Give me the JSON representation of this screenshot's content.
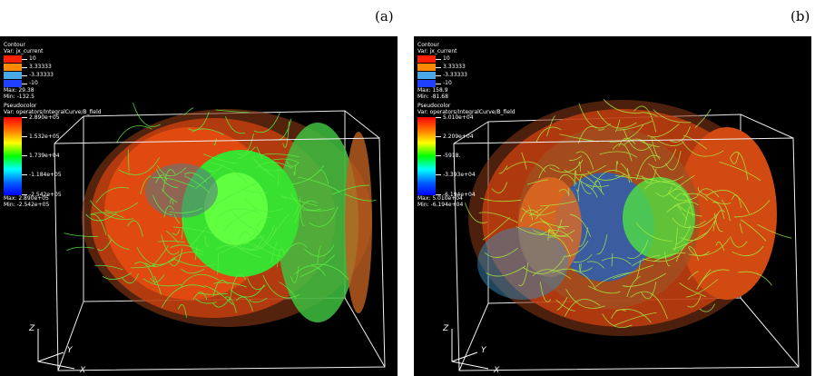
{
  "labels": {
    "a": "(a)",
    "b": "(b)"
  },
  "panels": [
    {
      "contour_title": "Contour",
      "contour_var": "Var: jx_current",
      "contour_levels": [
        "10",
        "3.33333",
        "-3.33333",
        "-10"
      ],
      "contour_colors": [
        "#ff2000",
        "#ff8a00",
        "#4aa8e8",
        "#2040ff"
      ],
      "contour_max": "Max:  29.38",
      "contour_min": "Min: -132.5",
      "pseudo_title": "Pseudocolor",
      "pseudo_var": "Var: operators/IntegralCurve/B_field",
      "pseudo_ticks": [
        "2.890e+05",
        "1.532e+05",
        "1.739e+04",
        "-1.184e+05",
        "-2.542e+05"
      ],
      "pseudo_max": "Max: 2.890e+05",
      "pseudo_min": "Min: -2.542e+05",
      "axis_z": "Z",
      "axis_y": "Y",
      "axis_x": "X"
    },
    {
      "contour_title": "Contour",
      "contour_var": "Var: jx_current",
      "contour_levels": [
        "10",
        "3.33333",
        "-3.33333",
        "-10"
      ],
      "contour_colors": [
        "#ff2000",
        "#ff8a00",
        "#4aa8e8",
        "#2040ff"
      ],
      "contour_max": "Max:  158.9",
      "contour_min": "Min: -81.68",
      "pseudo_title": "Pseudocolor",
      "pseudo_var": "Var: operators/IntegralCurve/B_field",
      "pseudo_ticks": [
        "5.010e+04",
        "2.209e+04",
        "-5918.",
        "-3.393e+04",
        "-6.194e+04"
      ],
      "pseudo_max": "Max: 5.010e+04",
      "pseudo_min": "Min: -6.194e+04",
      "axis_z": "Z",
      "axis_y": "Y",
      "axis_x": "X"
    }
  ]
}
